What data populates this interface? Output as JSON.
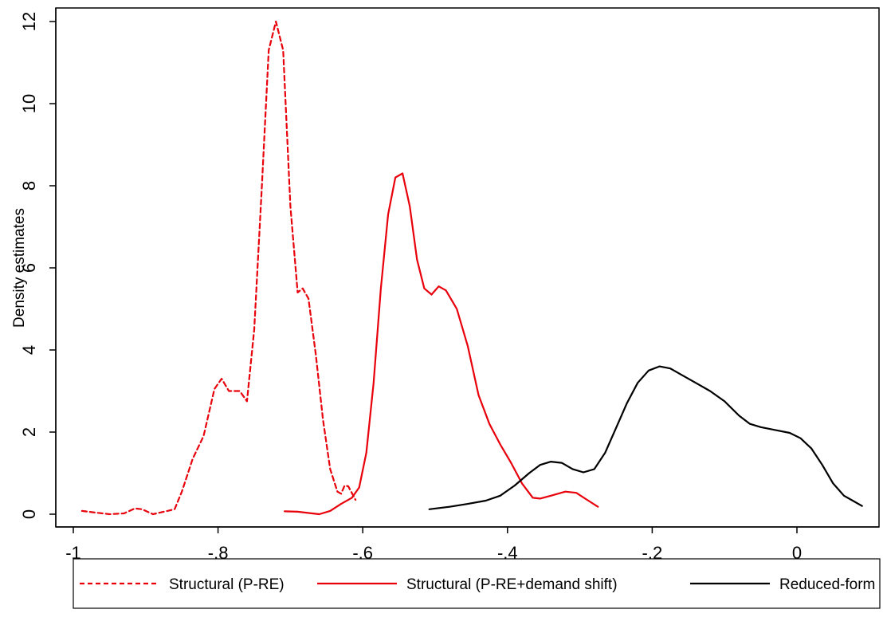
{
  "chart_data": {
    "type": "line",
    "ylabel": "Density estimates",
    "xlabel": "",
    "xlim": [
      -1.0,
      0.1
    ],
    "ylim": [
      0,
      12
    ],
    "x_ticks": [
      -1.0,
      -0.8,
      -0.6,
      -0.4,
      -0.2,
      0.0
    ],
    "x_tick_labels": [
      "-1",
      "-.8",
      "-.6",
      "-.4",
      "-.2",
      "0"
    ],
    "y_ticks": [
      0,
      2,
      4,
      6,
      8,
      10,
      12
    ],
    "y_tick_labels": [
      "0",
      "2",
      "4",
      "6",
      "8",
      "10",
      "12"
    ],
    "legend_position": "bottom",
    "grid": false,
    "series": [
      {
        "name": "Structural (P-RE)",
        "color": "#e8000b",
        "dash": "dashed",
        "points": [
          [
            -0.988,
            0.08
          ],
          [
            -0.97,
            0.04
          ],
          [
            -0.95,
            0.0
          ],
          [
            -0.93,
            0.02
          ],
          [
            -0.915,
            0.14
          ],
          [
            -0.905,
            0.12
          ],
          [
            -0.89,
            0.0
          ],
          [
            -0.87,
            0.08
          ],
          [
            -0.86,
            0.12
          ],
          [
            -0.85,
            0.55
          ],
          [
            -0.835,
            1.35
          ],
          [
            -0.82,
            1.9
          ],
          [
            -0.805,
            3.05
          ],
          [
            -0.795,
            3.3
          ],
          [
            -0.785,
            3.0
          ],
          [
            -0.77,
            3.0
          ],
          [
            -0.76,
            2.75
          ],
          [
            -0.75,
            4.5
          ],
          [
            -0.74,
            7.8
          ],
          [
            -0.73,
            11.3
          ],
          [
            -0.72,
            12.0
          ],
          [
            -0.71,
            11.3
          ],
          [
            -0.7,
            7.5
          ],
          [
            -0.69,
            5.4
          ],
          [
            -0.683,
            5.5
          ],
          [
            -0.675,
            5.25
          ],
          [
            -0.665,
            3.9
          ],
          [
            -0.655,
            2.3
          ],
          [
            -0.645,
            1.1
          ],
          [
            -0.635,
            0.55
          ],
          [
            -0.63,
            0.5
          ],
          [
            -0.625,
            0.7
          ],
          [
            -0.62,
            0.68
          ],
          [
            -0.61,
            0.35
          ]
        ]
      },
      {
        "name": "Structural (P-RE+demand shift)",
        "color": "#e8000b",
        "dash": "solid",
        "points": [
          [
            -0.708,
            0.07
          ],
          [
            -0.69,
            0.06
          ],
          [
            -0.67,
            0.02
          ],
          [
            -0.66,
            0.0
          ],
          [
            -0.645,
            0.08
          ],
          [
            -0.63,
            0.25
          ],
          [
            -0.615,
            0.4
          ],
          [
            -0.605,
            0.65
          ],
          [
            -0.595,
            1.5
          ],
          [
            -0.585,
            3.2
          ],
          [
            -0.575,
            5.5
          ],
          [
            -0.565,
            7.3
          ],
          [
            -0.555,
            8.2
          ],
          [
            -0.545,
            8.3
          ],
          [
            -0.535,
            7.5
          ],
          [
            -0.525,
            6.2
          ],
          [
            -0.515,
            5.5
          ],
          [
            -0.505,
            5.35
          ],
          [
            -0.495,
            5.55
          ],
          [
            -0.485,
            5.45
          ],
          [
            -0.47,
            5.0
          ],
          [
            -0.455,
            4.1
          ],
          [
            -0.44,
            2.9
          ],
          [
            -0.425,
            2.2
          ],
          [
            -0.41,
            1.7
          ],
          [
            -0.395,
            1.25
          ],
          [
            -0.38,
            0.75
          ],
          [
            -0.365,
            0.4
          ],
          [
            -0.355,
            0.38
          ],
          [
            -0.34,
            0.45
          ],
          [
            -0.32,
            0.55
          ],
          [
            -0.305,
            0.52
          ],
          [
            -0.29,
            0.35
          ],
          [
            -0.275,
            0.18
          ]
        ]
      },
      {
        "name": "Reduced-form",
        "color": "#000000",
        "dash": "solid",
        "points": [
          [
            -0.508,
            0.12
          ],
          [
            -0.48,
            0.18
          ],
          [
            -0.455,
            0.25
          ],
          [
            -0.43,
            0.33
          ],
          [
            -0.41,
            0.45
          ],
          [
            -0.39,
            0.7
          ],
          [
            -0.37,
            1.0
          ],
          [
            -0.355,
            1.2
          ],
          [
            -0.34,
            1.28
          ],
          [
            -0.325,
            1.25
          ],
          [
            -0.31,
            1.1
          ],
          [
            -0.295,
            1.02
          ],
          [
            -0.28,
            1.1
          ],
          [
            -0.265,
            1.5
          ],
          [
            -0.25,
            2.1
          ],
          [
            -0.235,
            2.7
          ],
          [
            -0.22,
            3.2
          ],
          [
            -0.205,
            3.5
          ],
          [
            -0.19,
            3.6
          ],
          [
            -0.175,
            3.55
          ],
          [
            -0.16,
            3.4
          ],
          [
            -0.14,
            3.2
          ],
          [
            -0.12,
            3.0
          ],
          [
            -0.1,
            2.75
          ],
          [
            -0.08,
            2.4
          ],
          [
            -0.065,
            2.2
          ],
          [
            -0.05,
            2.12
          ],
          [
            -0.03,
            2.05
          ],
          [
            -0.01,
            1.98
          ],
          [
            0.005,
            1.85
          ],
          [
            0.02,
            1.6
          ],
          [
            0.035,
            1.2
          ],
          [
            0.05,
            0.75
          ],
          [
            0.065,
            0.45
          ],
          [
            0.08,
            0.3
          ],
          [
            0.09,
            0.2
          ]
        ]
      }
    ]
  }
}
